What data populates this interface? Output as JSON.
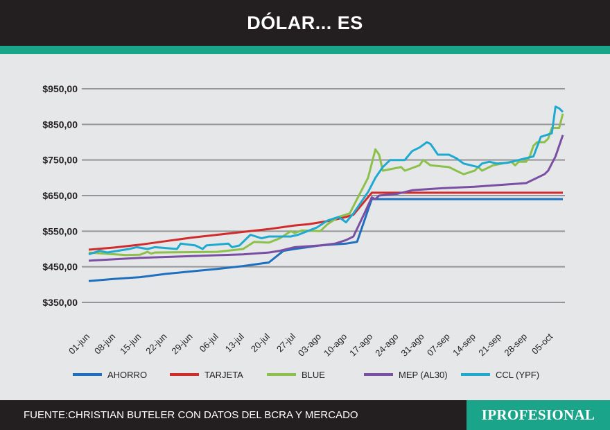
{
  "header": {
    "title": "DÓLAR... ES"
  },
  "footer": {
    "source": "FUENTE:CHRISTIAN BUTELER CON DATOS DEL BCRA Y MERCADO",
    "logo": "IPROFESIONAL"
  },
  "chart_data": {
    "type": "line",
    "title": "DÓLAR... ES",
    "xlabel": "",
    "ylabel": "",
    "ylim": [
      350,
      950
    ],
    "xlim": [
      0,
      129
    ],
    "x_unit": "days since 01-jun",
    "yticks": [
      350,
      450,
      550,
      650,
      750,
      850,
      950
    ],
    "ytick_labels": [
      "$350,00",
      "$450,00",
      "$550,00",
      "$650,00",
      "$750,00",
      "$850,00",
      "$950,00"
    ],
    "xtick_days": [
      0,
      7,
      14,
      21,
      28,
      35,
      42,
      49,
      56,
      63,
      70,
      77,
      84,
      91,
      98,
      105,
      112,
      119,
      126
    ],
    "xtick_labels": [
      "01-jun",
      "08-jun",
      "15-jun",
      "22-jun",
      "29-jun",
      "06-jul",
      "13-jul",
      "20-jul",
      "27-jul",
      "03-ago",
      "10-ago",
      "17-ago",
      "24-ago",
      "31-ago",
      "07-sep",
      "14-sep",
      "21-sep",
      "28-sep",
      "05-oct"
    ],
    "grid": true,
    "legend_position": "bottom",
    "series": [
      {
        "name": "AHORRO",
        "color": "#1f6fbf",
        "x": [
          0,
          7,
          14,
          21,
          28,
          35,
          42,
          49,
          53,
          56,
          63,
          70,
          73,
          77,
          129
        ],
        "y": [
          410,
          416,
          421,
          430,
          437,
          444,
          452,
          462,
          495,
          500,
          510,
          515,
          520,
          640,
          640
        ]
      },
      {
        "name": "TARJETA",
        "color": "#d12b2b",
        "x": [
          0,
          7,
          14,
          21,
          28,
          35,
          42,
          49,
          56,
          60,
          66,
          70,
          72,
          77,
          129
        ],
        "y": [
          498,
          504,
          512,
          522,
          532,
          540,
          548,
          556,
          566,
          570,
          580,
          590,
          596,
          658,
          658
        ]
      },
      {
        "name": "BLUE",
        "color": "#8cc04a",
        "x": [
          0,
          10,
          14,
          16,
          17,
          18,
          35,
          42,
          45,
          49,
          52,
          55,
          56,
          58,
          63,
          65,
          68,
          71,
          73,
          76,
          78,
          79,
          80,
          85,
          86,
          90,
          91,
          93,
          98,
          100,
          102,
          105,
          106,
          107,
          110,
          115,
          116,
          117,
          119,
          120,
          121,
          122,
          124,
          125,
          126,
          128,
          129
        ],
        "y": [
          490,
          483,
          484,
          492,
          487,
          490,
          492,
          500,
          520,
          518,
          530,
          550,
          545,
          552,
          550,
          570,
          590,
          600,
          640,
          700,
          780,
          765,
          720,
          730,
          720,
          735,
          750,
          735,
          730,
          720,
          710,
          720,
          730,
          720,
          735,
          745,
          735,
          745,
          745,
          760,
          790,
          800,
          800,
          810,
          840,
          840,
          880
        ]
      },
      {
        "name": "MEP (AL30)",
        "color": "#7a4ea3",
        "x": [
          0,
          14,
          28,
          42,
          49,
          52,
          56,
          63,
          67,
          70,
          72,
          75,
          77,
          78,
          79,
          84,
          88,
          95,
          105,
          112,
          119,
          122,
          124,
          125,
          127,
          129
        ],
        "y": [
          467,
          475,
          480,
          485,
          490,
          495,
          505,
          510,
          515,
          525,
          535,
          600,
          645,
          640,
          650,
          655,
          665,
          670,
          675,
          680,
          685,
          700,
          710,
          720,
          760,
          820
        ]
      },
      {
        "name": "CCL (YPF)",
        "color": "#1eaad0",
        "x": [
          0,
          3,
          5,
          11,
          13,
          16,
          18,
          24,
          25,
          29,
          31,
          32,
          38,
          39,
          41,
          44,
          47,
          49,
          55,
          57,
          62,
          65,
          68,
          70,
          72,
          76,
          78,
          80,
          82,
          86,
          88,
          90,
          92,
          93,
          95,
          98,
          100,
          102,
          106,
          107,
          109,
          111,
          114,
          117,
          119,
          121,
          123,
          126,
          127,
          128,
          129
        ],
        "y": [
          485,
          495,
          490,
          500,
          505,
          500,
          505,
          500,
          515,
          510,
          500,
          510,
          515,
          505,
          510,
          540,
          530,
          535,
          535,
          540,
          560,
          580,
          590,
          575,
          600,
          660,
          700,
          730,
          750,
          750,
          775,
          785,
          800,
          795,
          765,
          765,
          755,
          740,
          730,
          740,
          745,
          740,
          742,
          750,
          755,
          760,
          815,
          825,
          900,
          895,
          885
        ]
      }
    ]
  }
}
